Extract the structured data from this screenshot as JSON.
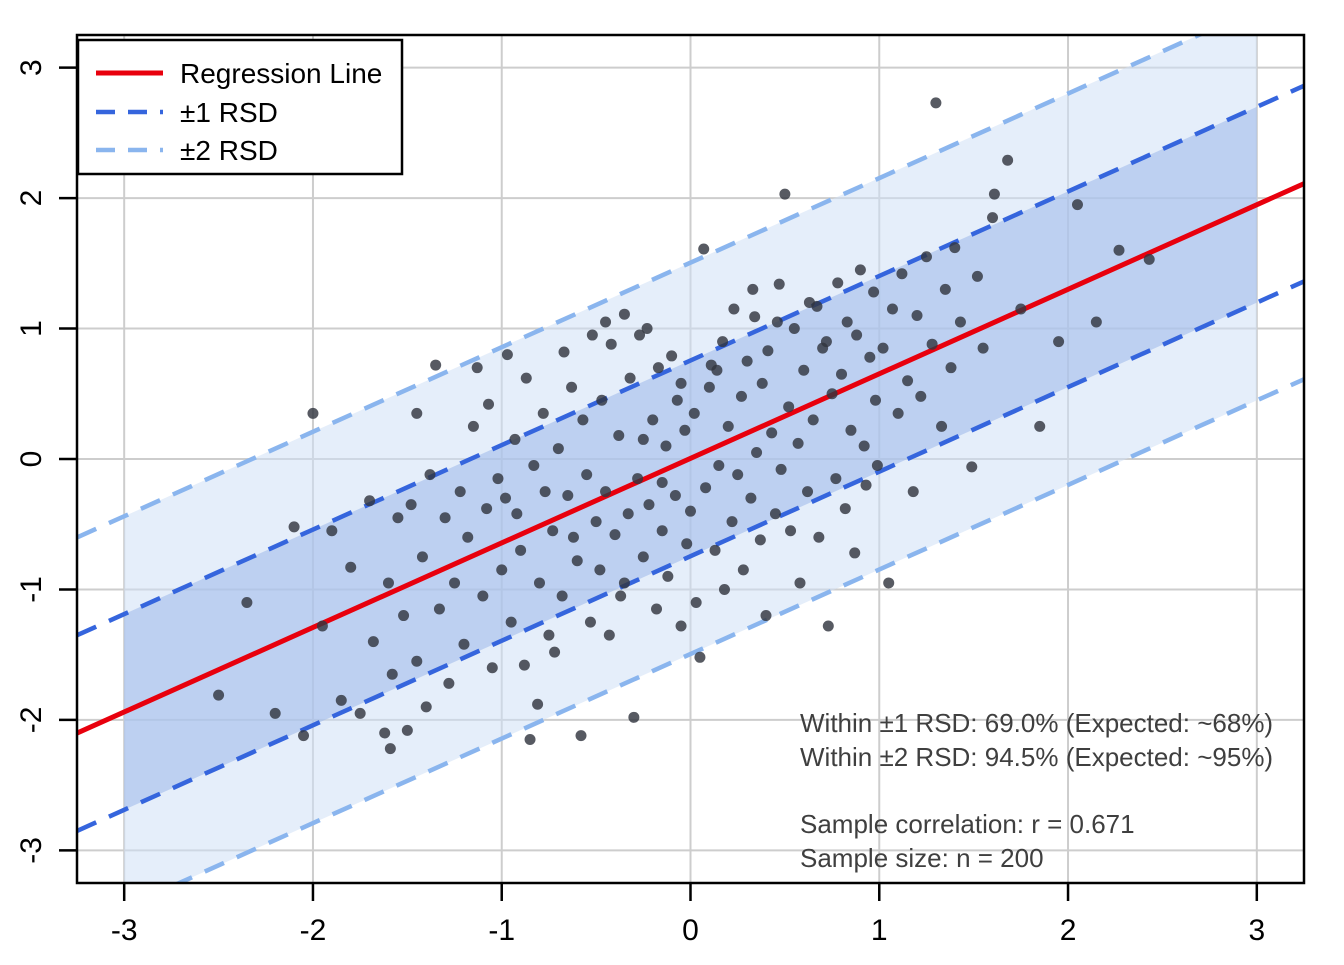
{
  "chart_data": {
    "type": "scatter",
    "title": "",
    "xlabel": "",
    "ylabel": "",
    "xlim": [
      -3.25,
      3.25
    ],
    "ylim": [
      -3.25,
      3.25
    ],
    "x_ticks": [
      -3,
      -2,
      -1,
      0,
      1,
      2,
      3
    ],
    "y_ticks": [
      -3,
      -2,
      -1,
      0,
      1,
      2,
      3
    ],
    "grid": true,
    "regression": {
      "slope": 0.648,
      "intercept": 0.005
    },
    "rsd": 0.75,
    "bands": {
      "inner_mult": 1,
      "outer_mult": 2,
      "x_range": [
        -3,
        3
      ]
    },
    "legend": {
      "position": "top-left",
      "items": [
        {
          "label": "Regression Line",
          "style": "solid",
          "color_key": "regression"
        },
        {
          "label": "±1 RSD",
          "style": "dashed",
          "color_key": "band1_line"
        },
        {
          "label": "±2 RSD",
          "style": "dashed",
          "color_key": "band2_line"
        }
      ]
    },
    "annotations": {
      "lines": [
        "Within ±1 RSD: 69.0% (Expected: ~68%)",
        "Within ±2 RSD: 94.5% (Expected: ~95%)",
        "Sample correlation: r = 0.671",
        "Sample size: n = 200"
      ]
    },
    "stats": {
      "within_1_rsd_pct": 69.0,
      "expected_1_rsd_pct": 68,
      "within_2_rsd_pct": 94.5,
      "expected_2_rsd_pct": 95,
      "r": 0.671,
      "n": 200
    },
    "colors": {
      "regression": "#e8000d",
      "band1_line": "#3565dd",
      "band2_line": "#8ab5ee",
      "band1_fill": "#9db8ea",
      "band2_fill": "#cfe0f6",
      "point": "#32363f",
      "grid": "#cdcdcd",
      "axis": "#000000",
      "annotation_text": "#3f3f3f",
      "legend_bg": "#ffffff"
    },
    "points": [
      [
        -2.5,
        -1.81
      ],
      [
        -2.35,
        -1.1
      ],
      [
        -2.2,
        -1.95
      ],
      [
        -2.1,
        -0.52
      ],
      [
        -2.0,
        0.35
      ],
      [
        -2.05,
        -2.12
      ],
      [
        -1.95,
        -1.28
      ],
      [
        -1.9,
        -0.55
      ],
      [
        -1.85,
        -1.85
      ],
      [
        -1.8,
        -0.83
      ],
      [
        -1.75,
        -1.95
      ],
      [
        -1.7,
        -0.32
      ],
      [
        -1.68,
        -1.4
      ],
      [
        -1.62,
        -2.1
      ],
      [
        -1.6,
        -0.95
      ],
      [
        -1.58,
        -1.65
      ],
      [
        -1.55,
        -0.45
      ],
      [
        -1.52,
        -1.2
      ],
      [
        -1.5,
        -2.08
      ],
      [
        -1.59,
        -2.22
      ],
      [
        -1.48,
        -0.35
      ],
      [
        -1.45,
        -1.55
      ],
      [
        -1.42,
        -0.75
      ],
      [
        -1.4,
        -1.9
      ],
      [
        -1.38,
        -0.12
      ],
      [
        -1.35,
        0.72
      ],
      [
        -1.33,
        -1.15
      ],
      [
        -1.3,
        -0.45
      ],
      [
        -1.28,
        -1.72
      ],
      [
        -1.25,
        -0.95
      ],
      [
        -1.22,
        -0.25
      ],
      [
        -1.2,
        -1.42
      ],
      [
        -1.18,
        -0.6
      ],
      [
        -1.15,
        0.25
      ],
      [
        -1.13,
        0.7
      ],
      [
        -1.1,
        -1.05
      ],
      [
        -1.08,
        -0.38
      ],
      [
        -1.05,
        -1.6
      ],
      [
        -1.02,
        -0.15
      ],
      [
        -1.0,
        -0.85
      ],
      [
        -1.45,
        0.35
      ],
      [
        -1.07,
        0.42
      ],
      [
        -0.98,
        -0.3
      ],
      [
        -0.95,
        -1.25
      ],
      [
        -0.93,
        0.15
      ],
      [
        -0.9,
        -0.7
      ],
      [
        -0.88,
        -1.58
      ],
      [
        -0.85,
        -2.15
      ],
      [
        -0.83,
        -0.05
      ],
      [
        -0.8,
        -0.95
      ],
      [
        -0.78,
        0.35
      ],
      [
        -0.75,
        -1.35
      ],
      [
        -0.73,
        -0.55
      ],
      [
        -0.7,
        0.08
      ],
      [
        -0.68,
        -1.05
      ],
      [
        -0.65,
        -0.28
      ],
      [
        -0.63,
        0.55
      ],
      [
        -0.6,
        -0.78
      ],
      [
        -0.58,
        -2.12
      ],
      [
        -0.55,
        -0.12
      ],
      [
        -0.53,
        -1.25
      ],
      [
        -0.52,
        0.95
      ],
      [
        -0.5,
        -0.48
      ],
      [
        -0.97,
        0.8
      ],
      [
        -0.92,
        -0.42
      ],
      [
        -0.87,
        0.62
      ],
      [
        -0.81,
        -1.88
      ],
      [
        -0.77,
        -0.25
      ],
      [
        -0.72,
        -1.48
      ],
      [
        -0.67,
        0.82
      ],
      [
        -0.62,
        -0.6
      ],
      [
        -0.57,
        0.3
      ],
      [
        -0.48,
        -0.85
      ],
      [
        -0.47,
        0.45
      ],
      [
        -0.45,
        -0.25
      ],
      [
        -0.43,
        -1.35
      ],
      [
        -0.42,
        0.88
      ],
      [
        -0.4,
        -0.58
      ],
      [
        -0.38,
        0.18
      ],
      [
        -0.37,
        -1.05
      ],
      [
        -0.35,
        1.11
      ],
      [
        -0.33,
        -0.42
      ],
      [
        -0.32,
        0.62
      ],
      [
        -0.3,
        -1.98
      ],
      [
        -0.28,
        -0.15
      ],
      [
        -0.27,
        0.95
      ],
      [
        -0.25,
        -0.75
      ],
      [
        -0.23,
        1.0
      ],
      [
        -0.22,
        -0.35
      ],
      [
        -0.2,
        0.3
      ],
      [
        -0.18,
        -1.15
      ],
      [
        -0.17,
        0.7
      ],
      [
        -0.15,
        -0.55
      ],
      [
        -0.13,
        0.1
      ],
      [
        -0.12,
        -0.9
      ],
      [
        -0.1,
        0.79
      ],
      [
        -0.08,
        -0.28
      ],
      [
        -0.07,
        0.45
      ],
      [
        -0.05,
        -1.28
      ],
      [
        -0.03,
        0.22
      ],
      [
        -0.02,
        -0.65
      ],
      [
        -0.45,
        1.05
      ],
      [
        -0.35,
        -0.95
      ],
      [
        -0.25,
        0.15
      ],
      [
        -0.15,
        -0.18
      ],
      [
        -0.05,
        0.58
      ],
      [
        0.0,
        -0.4
      ],
      [
        0.02,
        0.35
      ],
      [
        0.03,
        -1.1
      ],
      [
        0.05,
        -1.52
      ],
      [
        0.07,
        1.61
      ],
      [
        0.08,
        -0.22
      ],
      [
        0.1,
        0.55
      ],
      [
        0.11,
        0.72
      ],
      [
        0.13,
        -0.7
      ],
      [
        0.14,
        0.68
      ],
      [
        0.15,
        -0.05
      ],
      [
        0.17,
        0.9
      ],
      [
        0.18,
        -1.0
      ],
      [
        0.2,
        0.25
      ],
      [
        0.22,
        -0.48
      ],
      [
        0.23,
        1.15
      ],
      [
        0.25,
        -0.12
      ],
      [
        0.27,
        0.48
      ],
      [
        0.28,
        -0.85
      ],
      [
        0.3,
        0.75
      ],
      [
        0.32,
        -0.3
      ],
      [
        0.33,
        1.3
      ],
      [
        0.34,
        1.09
      ],
      [
        0.35,
        0.05
      ],
      [
        0.37,
        -0.62
      ],
      [
        0.38,
        0.58
      ],
      [
        0.4,
        -1.2
      ],
      [
        0.41,
        0.83
      ],
      [
        0.43,
        0.2
      ],
      [
        0.45,
        -0.42
      ],
      [
        0.46,
        1.05
      ],
      [
        0.47,
        1.34
      ],
      [
        0.48,
        -0.08
      ],
      [
        0.5,
        2.03
      ],
      [
        0.52,
        0.4
      ],
      [
        0.53,
        -0.55
      ],
      [
        0.55,
        1.0
      ],
      [
        0.57,
        0.12
      ],
      [
        0.58,
        -0.95
      ],
      [
        0.6,
        0.68
      ],
      [
        0.62,
        -0.25
      ],
      [
        0.63,
        1.2
      ],
      [
        0.65,
        0.3
      ],
      [
        0.67,
        1.17
      ],
      [
        0.68,
        -0.6
      ],
      [
        0.7,
        0.85
      ],
      [
        0.72,
        0.9
      ],
      [
        0.73,
        -1.28
      ],
      [
        0.75,
        0.5
      ],
      [
        0.77,
        -0.15
      ],
      [
        0.78,
        1.35
      ],
      [
        0.8,
        0.65
      ],
      [
        0.82,
        -0.38
      ],
      [
        0.83,
        1.05
      ],
      [
        0.85,
        0.22
      ],
      [
        0.87,
        -0.72
      ],
      [
        0.88,
        0.95
      ],
      [
        0.9,
        1.45
      ],
      [
        0.92,
        0.1
      ],
      [
        0.93,
        -0.2
      ],
      [
        0.95,
        0.78
      ],
      [
        0.97,
        1.28
      ],
      [
        0.98,
        0.45
      ],
      [
        0.99,
        -0.05
      ],
      [
        1.02,
        0.85
      ],
      [
        1.05,
        -0.95
      ],
      [
        1.07,
        1.15
      ],
      [
        1.1,
        0.35
      ],
      [
        1.12,
        1.42
      ],
      [
        1.15,
        0.6
      ],
      [
        1.18,
        -0.25
      ],
      [
        1.2,
        1.1
      ],
      [
        1.22,
        0.48
      ],
      [
        1.25,
        1.55
      ],
      [
        1.28,
        0.88
      ],
      [
        1.3,
        2.73
      ],
      [
        1.33,
        0.25
      ],
      [
        1.35,
        1.3
      ],
      [
        1.38,
        0.7
      ],
      [
        1.4,
        1.62
      ],
      [
        1.43,
        1.05
      ],
      [
        1.49,
        -0.06
      ],
      [
        1.52,
        1.4
      ],
      [
        1.55,
        0.85
      ],
      [
        1.6,
        1.85
      ],
      [
        1.61,
        2.03
      ],
      [
        1.68,
        2.29
      ],
      [
        1.75,
        1.15
      ],
      [
        1.85,
        0.25
      ],
      [
        1.95,
        0.9
      ],
      [
        2.05,
        1.95
      ],
      [
        2.15,
        1.05
      ],
      [
        2.27,
        1.6
      ],
      [
        2.43,
        1.53
      ]
    ]
  }
}
